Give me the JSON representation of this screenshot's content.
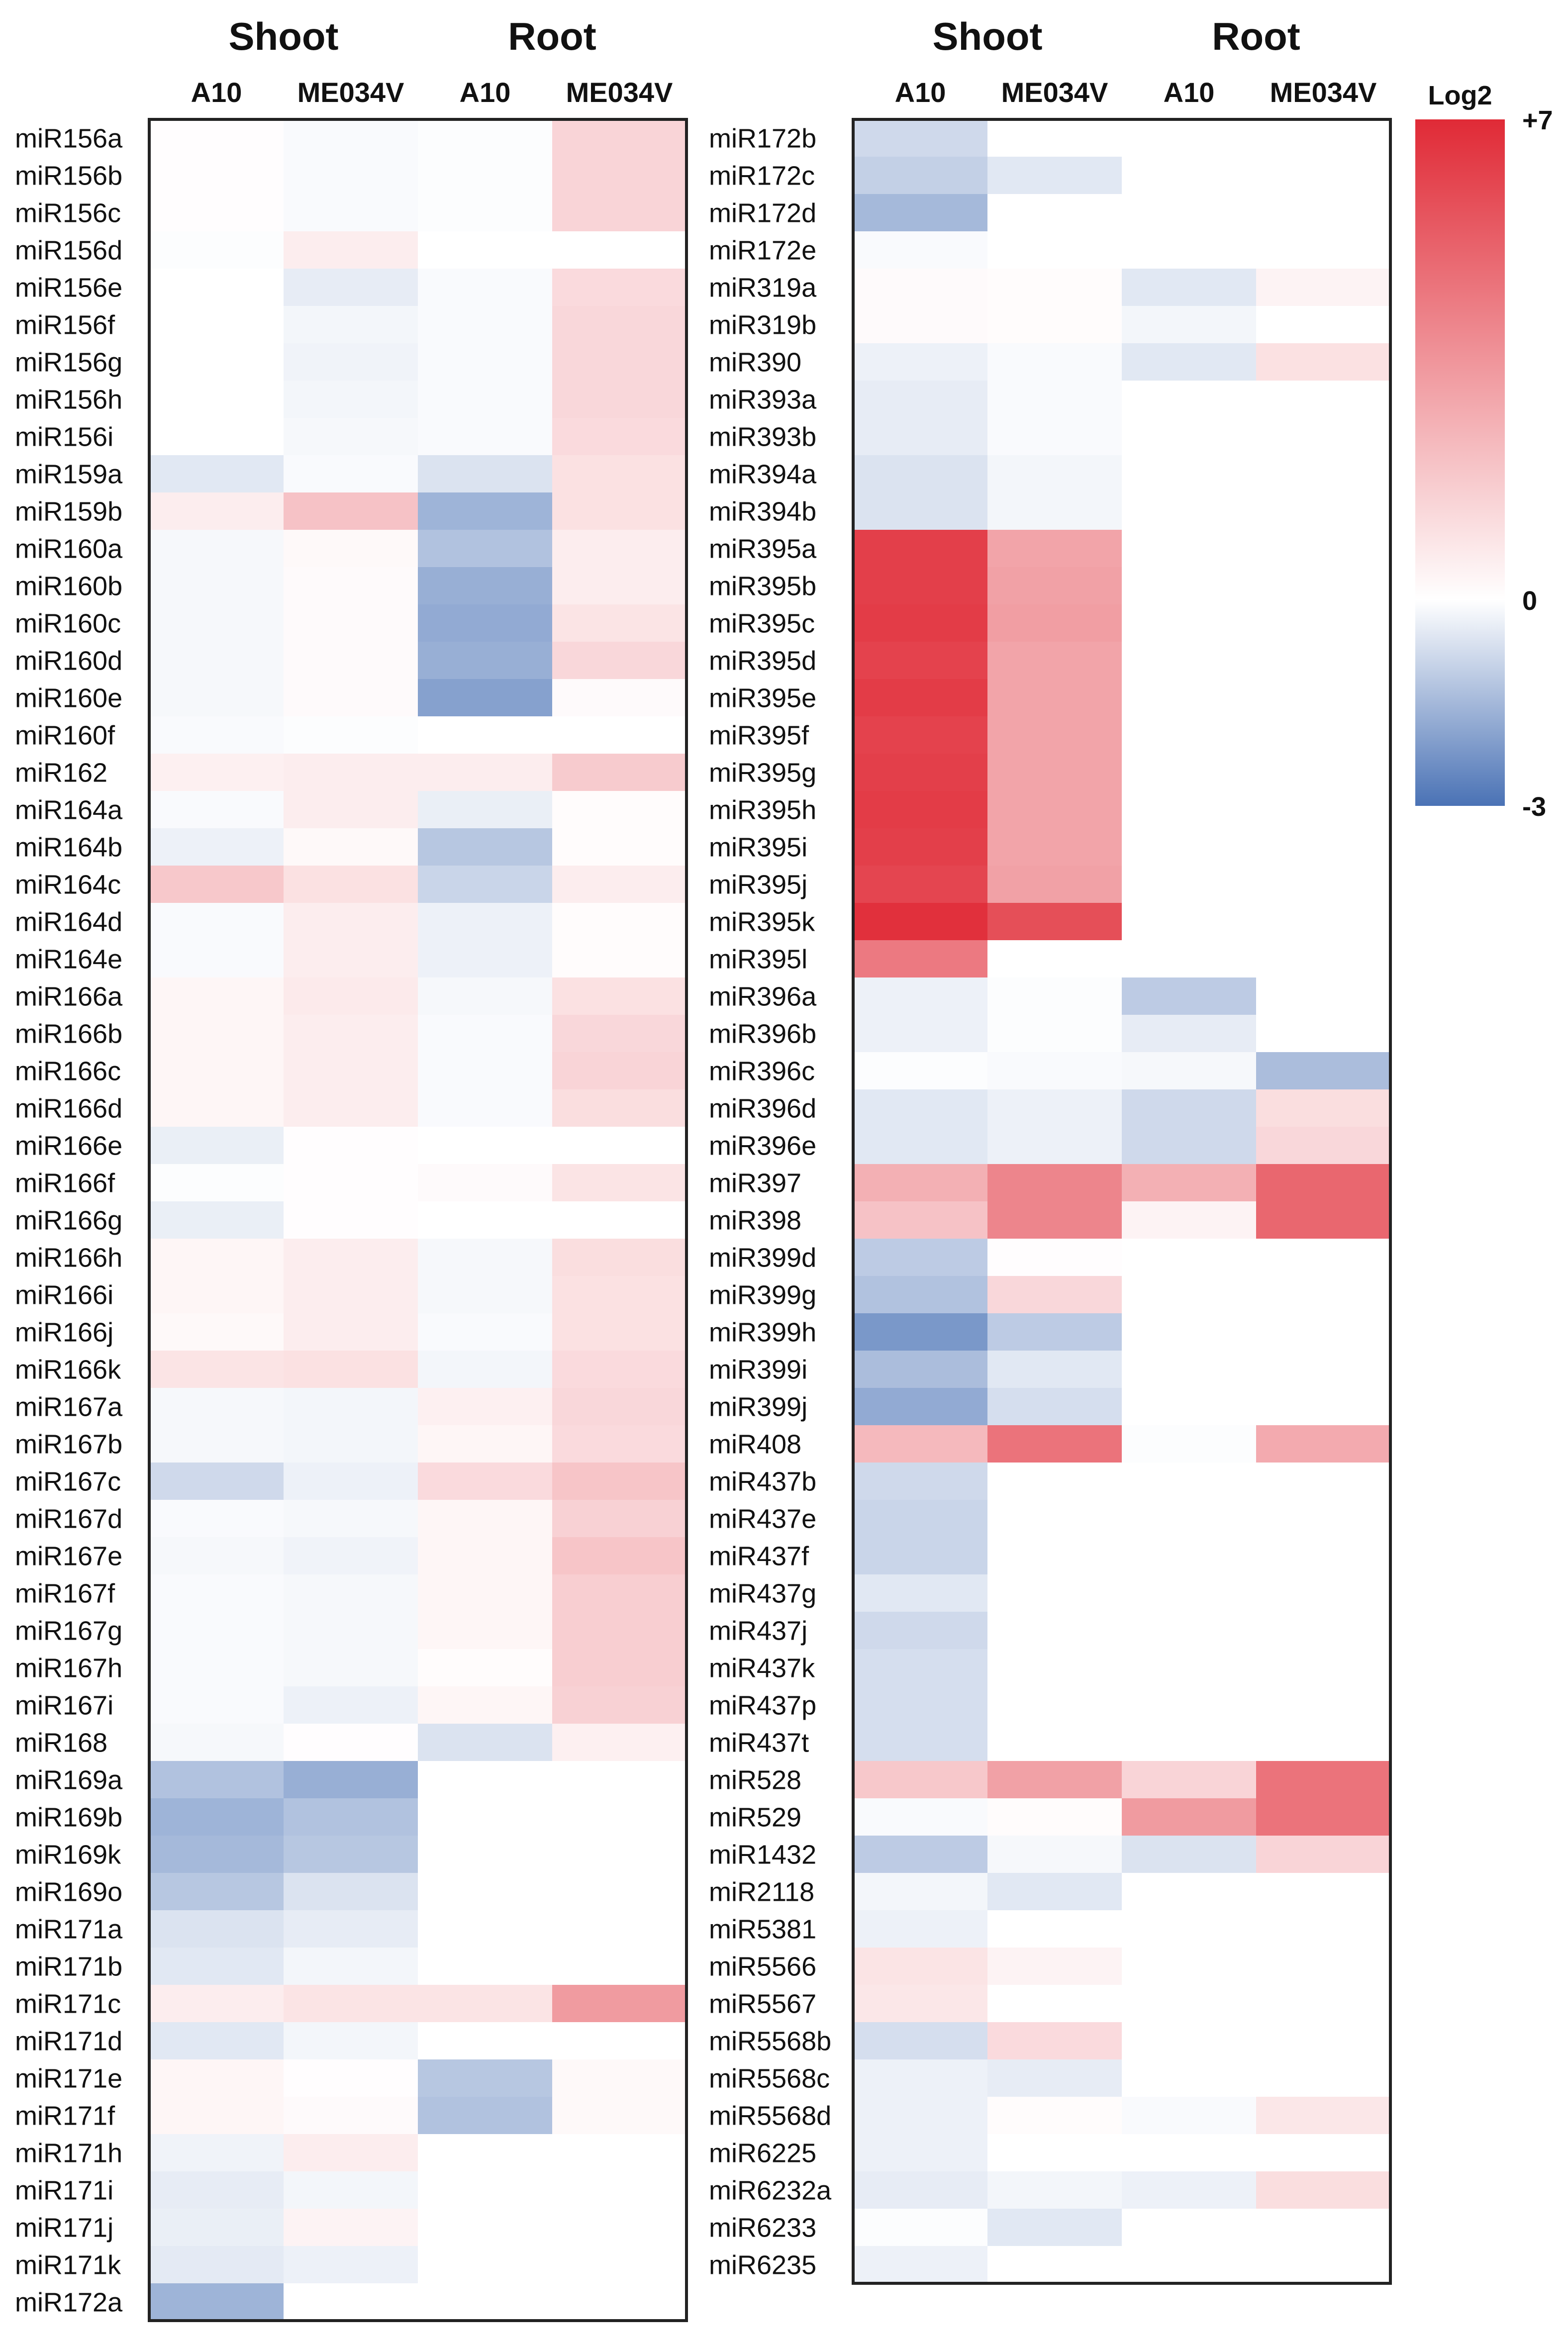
{
  "chart_data": {
    "type": "heatmap",
    "colorbar": {
      "title": "Log2",
      "min": -3,
      "max": 7,
      "ticks": [
        "+7",
        "0",
        "-3"
      ],
      "colors": {
        "negative": "#4a72b5",
        "zero": "#ffffff",
        "positive": "#e02a36"
      }
    },
    "groups": [
      "Shoot",
      "Root"
    ],
    "columns": [
      "A10",
      "ME034V",
      "A10",
      "ME034V"
    ],
    "panels": [
      {
        "rows": [
          "miR156a",
          "miR156b",
          "miR156c",
          "miR156d",
          "miR156e",
          "miR156f",
          "miR156g",
          "miR156h",
          "miR156i",
          "miR159a",
          "miR159b",
          "miR160a",
          "miR160b",
          "miR160c",
          "miR160d",
          "miR160e",
          "miR160f",
          "miR162",
          "miR164a",
          "miR164b",
          "miR164c",
          "miR164d",
          "miR164e",
          "miR166a",
          "miR166b",
          "miR166c",
          "miR166d",
          "miR166e",
          "miR166f",
          "miR166g",
          "miR166h",
          "miR166i",
          "miR166j",
          "miR166k",
          "miR167a",
          "miR167b",
          "miR167c",
          "miR167d",
          "miR167e",
          "miR167f",
          "miR167g",
          "miR167h",
          "miR167i",
          "miR168",
          "miR169a",
          "miR169b",
          "miR169k",
          "miR169o",
          "miR171a",
          "miR171b",
          "miR171c",
          "miR171d",
          "miR171e",
          "miR171f",
          "miR171h",
          "miR171i",
          "miR171j",
          "miR171k",
          "miR172a"
        ],
        "values": [
          [
            0.05,
            -0.1,
            -0.05,
            1.4
          ],
          [
            0.05,
            -0.1,
            -0.05,
            1.4
          ],
          [
            0.05,
            -0.1,
            -0.05,
            1.4
          ],
          [
            -0.05,
            0.6,
            null,
            null
          ],
          [
            0.0,
            -0.4,
            -0.1,
            1.2
          ],
          [
            0.0,
            -0.2,
            -0.1,
            1.3
          ],
          [
            0.0,
            -0.25,
            -0.1,
            1.3
          ],
          [
            0.0,
            -0.2,
            -0.1,
            1.3
          ],
          [
            0.0,
            -0.15,
            -0.1,
            1.2
          ],
          [
            -0.5,
            -0.1,
            -0.6,
            1.0
          ],
          [
            0.6,
            2.0,
            -1.6,
            1.0
          ],
          [
            -0.15,
            0.2,
            -1.3,
            0.6
          ],
          [
            -0.15,
            0.15,
            -1.7,
            0.6
          ],
          [
            -0.15,
            0.15,
            -1.8,
            0.9
          ],
          [
            -0.15,
            0.15,
            -1.7,
            1.3
          ],
          [
            -0.15,
            0.15,
            -2.0,
            0.15
          ],
          [
            -0.1,
            -0.05,
            null,
            null
          ],
          [
            0.5,
            0.6,
            0.6,
            1.7
          ],
          [
            -0.1,
            0.6,
            -0.35,
            0.1
          ],
          [
            -0.3,
            0.2,
            -1.2,
            0.1
          ],
          [
            1.8,
            1.0,
            -0.9,
            0.6
          ],
          [
            -0.1,
            0.6,
            -0.3,
            0.1
          ],
          [
            -0.1,
            0.6,
            -0.3,
            0.1
          ],
          [
            0.3,
            0.7,
            -0.15,
            1.0
          ],
          [
            0.3,
            0.6,
            -0.1,
            1.3
          ],
          [
            0.3,
            0.6,
            -0.1,
            1.4
          ],
          [
            0.3,
            0.6,
            -0.1,
            1.1
          ],
          [
            -0.35,
            0.05,
            null,
            null
          ],
          [
            -0.05,
            0.05,
            0.15,
            0.9
          ],
          [
            -0.35,
            0.05,
            null,
            null
          ],
          [
            0.3,
            0.6,
            -0.15,
            1.1
          ],
          [
            0.3,
            0.6,
            -0.15,
            1.0
          ],
          [
            0.2,
            0.6,
            -0.1,
            1.0
          ],
          [
            0.9,
            1.0,
            -0.2,
            1.2
          ],
          [
            -0.15,
            -0.2,
            0.5,
            1.3
          ],
          [
            -0.15,
            -0.2,
            0.3,
            1.2
          ],
          [
            -0.8,
            -0.3,
            1.2,
            1.9
          ],
          [
            -0.1,
            -0.15,
            0.3,
            1.5
          ],
          [
            -0.15,
            -0.25,
            0.3,
            1.9
          ],
          [
            -0.1,
            -0.15,
            0.3,
            1.6
          ],
          [
            -0.1,
            -0.15,
            0.3,
            1.6
          ],
          [
            -0.1,
            -0.15,
            0.1,
            1.6
          ],
          [
            -0.1,
            -0.3,
            0.3,
            1.5
          ],
          [
            -0.15,
            0.05,
            -0.6,
            0.5
          ],
          [
            -1.3,
            -1.7,
            null,
            null
          ],
          [
            -1.6,
            -1.3,
            null,
            null
          ],
          [
            -1.5,
            -1.2,
            null,
            null
          ],
          [
            -1.2,
            -0.6,
            null,
            null
          ],
          [
            -0.6,
            -0.4,
            null,
            null
          ],
          [
            -0.5,
            -0.2,
            null,
            null
          ],
          [
            0.6,
            0.9,
            0.9,
            3.3
          ],
          [
            -0.5,
            -0.2,
            null,
            null
          ],
          [
            0.3,
            0.05,
            -1.2,
            0.2
          ],
          [
            0.3,
            0.15,
            -1.3,
            0.2
          ],
          [
            -0.25,
            0.6,
            null,
            null
          ],
          [
            -0.4,
            -0.2,
            null,
            null
          ],
          [
            -0.35,
            0.4,
            null,
            null
          ],
          [
            -0.45,
            -0.3,
            null,
            null
          ],
          [
            -1.6,
            null,
            null,
            null
          ]
        ]
      },
      {
        "rows": [
          "miR172b",
          "miR172c",
          "miR172d",
          "miR172e",
          "miR319a",
          "miR319b",
          "miR390",
          "miR393a",
          "miR393b",
          "miR394a",
          "miR394b",
          "miR395a",
          "miR395b",
          "miR395c",
          "miR395d",
          "miR395e",
          "miR395f",
          "miR395g",
          "miR395h",
          "miR395i",
          "miR395j",
          "miR395k",
          "miR395l",
          "miR396a",
          "miR396b",
          "miR396c",
          "miR396d",
          "miR396e",
          "miR397",
          "miR398",
          "miR399d",
          "miR399g",
          "miR399h",
          "miR399i",
          "miR399j",
          "miR408",
          "miR437b",
          "miR437e",
          "miR437f",
          "miR437g",
          "miR437j",
          "miR437k",
          "miR437p",
          "miR437t",
          "miR528",
          "miR529",
          "miR1432",
          "miR2118",
          "miR5381",
          "miR5566",
          "miR5567",
          "miR5568b",
          "miR5568c",
          "miR5568d",
          "miR6225",
          "miR6232a",
          "miR6233",
          "miR6235"
        ],
        "values": [
          [
            -0.8,
            null,
            null,
            null
          ],
          [
            -1.0,
            -0.5,
            null,
            null
          ],
          [
            -1.5,
            null,
            null,
            null
          ],
          [
            -0.1,
            null,
            null,
            null
          ],
          [
            0.15,
            0.1,
            -0.5,
            0.4
          ],
          [
            0.15,
            0.1,
            -0.2,
            null
          ],
          [
            -0.3,
            -0.1,
            -0.5,
            1.0
          ],
          [
            -0.4,
            -0.1,
            null,
            null
          ],
          [
            -0.4,
            -0.1,
            null,
            null
          ],
          [
            -0.6,
            -0.2,
            null,
            null
          ],
          [
            -0.6,
            -0.2,
            null,
            null
          ],
          [
            6.3,
            3.0,
            null,
            null
          ],
          [
            6.3,
            3.1,
            null,
            null
          ],
          [
            6.4,
            3.2,
            null,
            null
          ],
          [
            6.2,
            3.0,
            null,
            null
          ],
          [
            6.4,
            3.0,
            null,
            null
          ],
          [
            6.2,
            3.0,
            null,
            null
          ],
          [
            6.3,
            3.0,
            null,
            null
          ],
          [
            6.4,
            3.0,
            null,
            null
          ],
          [
            6.3,
            3.0,
            null,
            null
          ],
          [
            6.1,
            3.1,
            null,
            null
          ],
          [
            6.8,
            5.8,
            null,
            null
          ],
          [
            4.4,
            null,
            null,
            null
          ],
          [
            -0.3,
            -0.05,
            -1.1,
            null
          ],
          [
            -0.3,
            -0.05,
            -0.4,
            null
          ],
          [
            -0.05,
            -0.1,
            -0.15,
            -1.4
          ],
          [
            -0.5,
            -0.3,
            -0.8,
            1.1
          ],
          [
            -0.5,
            -0.3,
            -0.8,
            1.3
          ],
          [
            2.6,
            4.0,
            2.6,
            5.0
          ],
          [
            2.0,
            4.0,
            0.4,
            5.0
          ],
          [
            -1.1,
            0.05,
            null,
            null
          ],
          [
            -1.3,
            1.3,
            null,
            null
          ],
          [
            -2.2,
            -1.1,
            null,
            null
          ],
          [
            -1.4,
            -0.5,
            null,
            null
          ],
          [
            -1.8,
            -0.7,
            null,
            null
          ],
          [
            2.3,
            4.6,
            -0.05,
            2.8
          ],
          [
            -0.8,
            null,
            null,
            null
          ],
          [
            -0.9,
            null,
            null,
            null
          ],
          [
            -0.9,
            null,
            null,
            null
          ],
          [
            -0.5,
            null,
            null,
            null
          ],
          [
            -0.8,
            null,
            null,
            null
          ],
          [
            -0.7,
            null,
            null,
            null
          ],
          [
            -0.7,
            null,
            null,
            null
          ],
          [
            -0.7,
            null,
            null,
            null
          ],
          [
            1.8,
            3.1,
            1.4,
            4.6
          ],
          [
            -0.1,
            0.1,
            3.3,
            4.6
          ],
          [
            -1.1,
            -0.15,
            -0.6,
            1.4
          ],
          [
            -0.2,
            -0.5,
            null,
            null
          ],
          [
            -0.3,
            null,
            null,
            null
          ],
          [
            0.9,
            0.4,
            null,
            null
          ],
          [
            0.8,
            null,
            null,
            null
          ],
          [
            -0.7,
            1.2,
            null,
            null
          ],
          [
            -0.3,
            -0.4,
            null,
            null
          ],
          [
            -0.3,
            0.1,
            -0.1,
            0.8
          ],
          [
            -0.3,
            null,
            null,
            null
          ],
          [
            -0.4,
            -0.2,
            -0.3,
            1.1
          ],
          [
            -0.05,
            -0.5,
            null,
            null
          ],
          [
            -0.3,
            null,
            null,
            null
          ]
        ]
      }
    ]
  }
}
